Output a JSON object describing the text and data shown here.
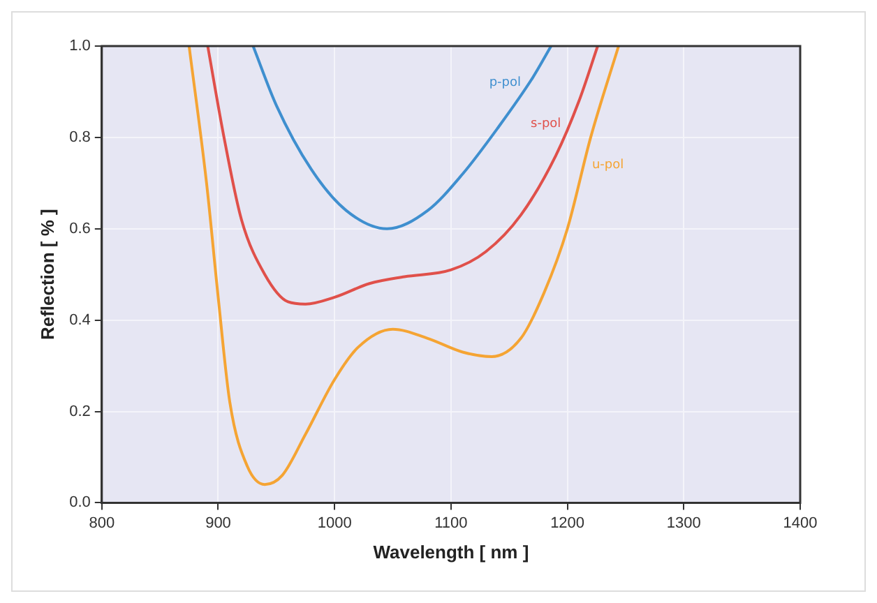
{
  "chart_data": {
    "type": "line",
    "xlabel": "Wavelength [ nm ]",
    "ylabel": "Reflection [ % ]",
    "xlim": [
      800,
      1400
    ],
    "xticks": [
      800,
      900,
      1000,
      1100,
      1200,
      1300,
      1400
    ],
    "ylim": [
      0,
      1
    ],
    "yticks": [
      {
        "value": 0,
        "label": "0.0"
      },
      {
        "value": 0.2,
        "label": "0.2"
      },
      {
        "value": 0.4,
        "label": "0.4"
      },
      {
        "value": 0.6,
        "label": "0.6"
      },
      {
        "value": 0.8,
        "label": "0.8"
      },
      {
        "value": 1,
        "label": "1.0"
      }
    ],
    "grid": true,
    "legend": false,
    "marker": "none",
    "line_style": "solid",
    "series": [
      {
        "name": "p-pol",
        "color": "#3f8fcf",
        "x": [
          930,
          950,
          980,
          1010,
          1045,
          1080,
          1110,
          1140,
          1170,
          1186
        ],
        "values": [
          1.0,
          0.87,
          0.73,
          0.64,
          0.6,
          0.64,
          0.72,
          0.82,
          0.93,
          1.0
        ]
      },
      {
        "name": "s-pol",
        "color": "#e0504a",
        "x": [
          891,
          905,
          920,
          940,
          960,
          975,
          1000,
          1030,
          1060,
          1100,
          1130,
          1160,
          1190,
          1210,
          1226
        ],
        "values": [
          1.0,
          0.8,
          0.62,
          0.5,
          0.44,
          0.435,
          0.45,
          0.48,
          0.495,
          0.51,
          0.55,
          0.63,
          0.76,
          0.88,
          1.0
        ]
      },
      {
        "name": "u-pol",
        "color": "#f5a433",
        "x": [
          875,
          890,
          900,
          910,
          925,
          940,
          955,
          975,
          1000,
          1020,
          1050,
          1080,
          1110,
          1135,
          1160,
          1180,
          1200,
          1220,
          1244
        ],
        "values": [
          1.0,
          0.7,
          0.45,
          0.22,
          0.08,
          0.04,
          0.06,
          0.15,
          0.27,
          0.34,
          0.38,
          0.36,
          0.33,
          0.32,
          0.36,
          0.46,
          0.6,
          0.8,
          1.0
        ]
      }
    ]
  }
}
